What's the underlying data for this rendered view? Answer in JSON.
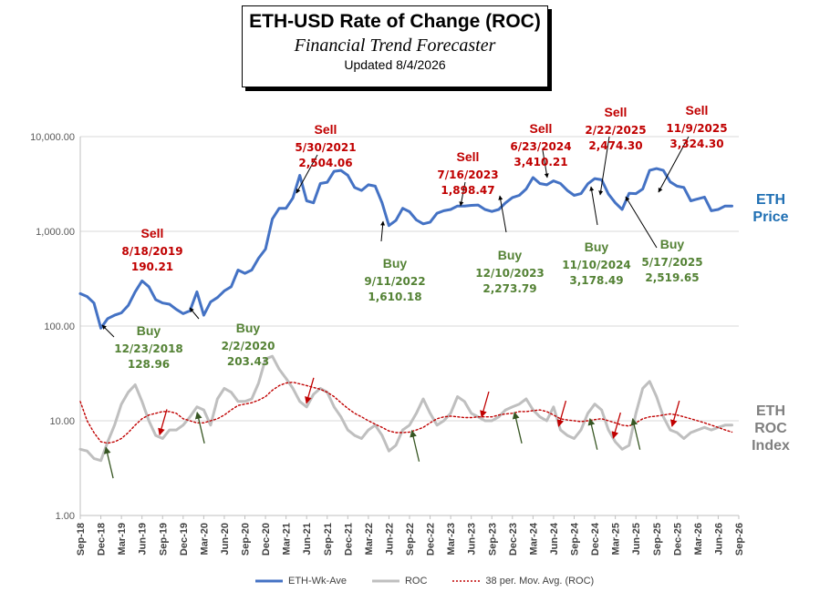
{
  "title": {
    "main": "ETH-USD  Rate of Change (ROC)",
    "sub": "Financial Trend Forecaster",
    "updated": "Updated 8/4/2026"
  },
  "right_labels": {
    "price": [
      "ETH",
      "Price"
    ],
    "roc": [
      "ETH",
      "ROC",
      "Index"
    ]
  },
  "colors": {
    "price": "#4472c4",
    "roc": "#bfbfbf",
    "ma": "#c00000",
    "sell": "#c00000",
    "buy": "#548235",
    "arrow": "#c00000",
    "buy_arrow": "#375623",
    "label_blue": "#1f6fb3",
    "label_gray": "#7f7f7f"
  },
  "chart_data": {
    "type": "line",
    "y_scale": "log",
    "ylim": [
      1,
      10000
    ],
    "y_ticks": [
      "1.00",
      "10.00",
      "100.00",
      "1,000.00",
      "10,000.00"
    ],
    "x_start": "Sep-18",
    "x_end": "Sep-26",
    "x_ticks": [
      "Sep-18",
      "Dec-18",
      "Mar-19",
      "Jun-19",
      "Sep-19",
      "Dec-19",
      "Mar-20",
      "Jun-20",
      "Sep-20",
      "Dec-20",
      "Mar-21",
      "Jun-21",
      "Sep-21",
      "Dec-21",
      "Mar-22",
      "Jun-22",
      "Sep-22",
      "Dec-22",
      "Mar-23",
      "Jun-23",
      "Sep-23",
      "Dec-23",
      "Mar-24",
      "Jun-24",
      "Sep-24",
      "Dec-24",
      "Mar-25",
      "Jun-25",
      "Sep-25",
      "Dec-25",
      "Mar-26",
      "Jun-26",
      "Sep-26"
    ],
    "legend": [
      "ETH-Wk-Ave",
      "ROC",
      "38 per. Mov. Avg. (ROC)"
    ],
    "series": [
      {
        "name": "ETH-Wk-Ave",
        "x": [
          "Sep-18",
          "Oct-18",
          "Nov-18",
          "Dec-18",
          "Jan-19",
          "Feb-19",
          "Mar-19",
          "Apr-19",
          "May-19",
          "Jun-19",
          "Jul-19",
          "Aug-19",
          "Sep-19",
          "Oct-19",
          "Nov-19",
          "Dec-19",
          "Jan-20",
          "Feb-20",
          "Mar-20",
          "Apr-20",
          "May-20",
          "Jun-20",
          "Jul-20",
          "Aug-20",
          "Sep-20",
          "Oct-20",
          "Nov-20",
          "Dec-20",
          "Jan-21",
          "Feb-21",
          "Mar-21",
          "Apr-21",
          "May-21",
          "Jun-21",
          "Jul-21",
          "Aug-21",
          "Sep-21",
          "Oct-21",
          "Nov-21",
          "Dec-21",
          "Jan-22",
          "Feb-22",
          "Mar-22",
          "Apr-22",
          "May-22",
          "Jun-22",
          "Jul-22",
          "Aug-22",
          "Sep-22",
          "Oct-22",
          "Nov-22",
          "Dec-22",
          "Jan-23",
          "Feb-23",
          "Mar-23",
          "Apr-23",
          "May-23",
          "Jun-23",
          "Jul-23",
          "Aug-23",
          "Sep-23",
          "Oct-23",
          "Nov-23",
          "Dec-23",
          "Jan-24",
          "Feb-24",
          "Mar-24",
          "Apr-24",
          "May-24",
          "Jun-24",
          "Jul-24",
          "Aug-24",
          "Sep-24",
          "Oct-24",
          "Nov-24",
          "Dec-24",
          "Jan-25",
          "Feb-25",
          "Mar-25",
          "Apr-25",
          "May-25",
          "Jun-25",
          "Jul-25",
          "Aug-25",
          "Sep-25",
          "Oct-25",
          "Nov-25",
          "Dec-25",
          "Jan-26",
          "Feb-26",
          "Mar-26",
          "Apr-26",
          "May-26",
          "Jun-26",
          "Jul-26",
          "Aug-26"
        ],
        "values": [
          220,
          205,
          175,
          95,
          120,
          130,
          138,
          165,
          230,
          300,
          260,
          190,
          175,
          170,
          150,
          135,
          145,
          230,
          130,
          180,
          200,
          235,
          260,
          390,
          360,
          390,
          520,
          650,
          1350,
          1750,
          1750,
          2250,
          3900,
          2100,
          2000,
          3200,
          3300,
          4300,
          4400,
          3900,
          2900,
          2700,
          3100,
          3000,
          2000,
          1150,
          1300,
          1750,
          1610,
          1320,
          1200,
          1250,
          1550,
          1650,
          1700,
          1850,
          1850,
          1880,
          1898,
          1700,
          1620,
          1700,
          2000,
          2274,
          2400,
          2800,
          3700,
          3200,
          3100,
          3410,
          3200,
          2700,
          2400,
          2500,
          3179,
          3600,
          3500,
          2474,
          2000,
          1700,
          2519,
          2500,
          2800,
          4400,
          4600,
          4400,
          3324,
          3000,
          2900,
          2100,
          2200,
          2300,
          1650,
          1700,
          1850,
          1850
        ]
      },
      {
        "name": "ROC",
        "x": [
          "Sep-18",
          "Oct-18",
          "Nov-18",
          "Dec-18",
          "Jan-19",
          "Feb-19",
          "Mar-19",
          "Apr-19",
          "May-19",
          "Jun-19",
          "Jul-19",
          "Aug-19",
          "Sep-19",
          "Oct-19",
          "Nov-19",
          "Dec-19",
          "Jan-20",
          "Feb-20",
          "Mar-20",
          "Apr-20",
          "May-20",
          "Jun-20",
          "Jul-20",
          "Aug-20",
          "Sep-20",
          "Oct-20",
          "Nov-20",
          "Dec-20",
          "Jan-21",
          "Feb-21",
          "Mar-21",
          "Apr-21",
          "May-21",
          "Jun-21",
          "Jul-21",
          "Aug-21",
          "Sep-21",
          "Oct-21",
          "Nov-21",
          "Dec-21",
          "Jan-22",
          "Feb-22",
          "Mar-22",
          "Apr-22",
          "May-22",
          "Jun-22",
          "Jul-22",
          "Aug-22",
          "Sep-22",
          "Oct-22",
          "Nov-22",
          "Dec-22",
          "Jan-23",
          "Feb-23",
          "Mar-23",
          "Apr-23",
          "May-23",
          "Jun-23",
          "Jul-23",
          "Aug-23",
          "Sep-23",
          "Oct-23",
          "Nov-23",
          "Dec-23",
          "Jan-24",
          "Feb-24",
          "Mar-24",
          "Apr-24",
          "May-24",
          "Jun-24",
          "Jul-24",
          "Aug-24",
          "Sep-24",
          "Oct-24",
          "Nov-24",
          "Dec-24",
          "Jan-25",
          "Feb-25",
          "Mar-25",
          "Apr-25",
          "May-25",
          "Jun-25",
          "Jul-25",
          "Aug-25",
          "Sep-25",
          "Oct-25",
          "Nov-25",
          "Dec-25",
          "Jan-26",
          "Feb-26",
          "Mar-26",
          "Apr-26",
          "May-26",
          "Jun-26",
          "Jul-26",
          "Aug-26"
        ],
        "values": [
          5,
          4.8,
          4,
          3.8,
          6,
          9,
          15,
          20,
          24,
          16,
          10,
          7,
          6.5,
          8,
          8,
          9,
          11,
          14,
          13,
          9,
          17,
          22,
          20,
          16,
          16,
          17,
          25,
          45,
          48,
          35,
          28,
          22,
          16,
          14,
          19,
          22,
          20,
          14,
          11,
          8,
          7,
          6.5,
          8,
          9,
          7,
          4.8,
          5.5,
          8,
          9,
          12,
          17,
          12,
          9,
          10,
          12,
          18,
          16,
          12,
          11,
          10,
          10,
          11,
          13,
          14,
          15,
          17,
          13,
          11,
          10,
          14,
          8,
          7,
          6.5,
          8,
          12,
          15,
          13,
          8,
          6,
          5,
          5.5,
          12,
          22,
          26,
          18,
          11,
          8,
          7.5,
          6.5,
          7.5,
          8,
          8.5,
          8,
          8.5,
          9,
          9
        ]
      },
      {
        "name": "38 per. Mov. Avg. (ROC)",
        "x": [
          "Sep-18",
          "Oct-18",
          "Nov-18",
          "Dec-18",
          "Jan-19",
          "Feb-19",
          "Mar-19",
          "Apr-19",
          "May-19",
          "Jun-19",
          "Jul-19",
          "Aug-19",
          "Sep-19",
          "Oct-19",
          "Nov-19",
          "Dec-19",
          "Jan-20",
          "Feb-20",
          "Mar-20",
          "Apr-20",
          "May-20",
          "Jun-20",
          "Jul-20",
          "Aug-20",
          "Sep-20",
          "Oct-20",
          "Nov-20",
          "Dec-20",
          "Jan-21",
          "Feb-21",
          "Mar-21",
          "Apr-21",
          "May-21",
          "Jun-21",
          "Jul-21",
          "Aug-21",
          "Sep-21",
          "Oct-21",
          "Nov-21",
          "Dec-21",
          "Jan-22",
          "Feb-22",
          "Mar-22",
          "Apr-22",
          "May-22",
          "Jun-22",
          "Jul-22",
          "Aug-22",
          "Sep-22",
          "Oct-22",
          "Nov-22",
          "Dec-22",
          "Jan-23",
          "Feb-23",
          "Mar-23",
          "Apr-23",
          "May-23",
          "Jun-23",
          "Jul-23",
          "Aug-23",
          "Sep-23",
          "Oct-23",
          "Nov-23",
          "Dec-23",
          "Jan-24",
          "Feb-24",
          "Mar-24",
          "Apr-24",
          "May-24",
          "Jun-24",
          "Jul-24",
          "Aug-24",
          "Sep-24",
          "Oct-24",
          "Nov-24",
          "Dec-24",
          "Jan-25",
          "Feb-25",
          "Mar-25",
          "Apr-25",
          "May-25",
          "Jun-25",
          "Jul-25",
          "Aug-25",
          "Sep-25",
          "Oct-25",
          "Nov-25",
          "Dec-25",
          "Jan-26",
          "Feb-26",
          "Mar-26",
          "Apr-26",
          "May-26",
          "Jun-26",
          "Jul-26",
          "Aug-26"
        ],
        "values": [
          16,
          10,
          7.5,
          6,
          5.8,
          6,
          6.5,
          7.5,
          9,
          10.5,
          11.5,
          12,
          12.5,
          12.5,
          12,
          10.5,
          10,
          9.5,
          9.5,
          10,
          10.5,
          11.5,
          13,
          14.5,
          15,
          15.5,
          16.5,
          18,
          21,
          23.5,
          25,
          25.5,
          24.5,
          23.5,
          22.5,
          21.5,
          20,
          18,
          15.5,
          13.5,
          12,
          11,
          10,
          9.2,
          8.5,
          7.8,
          7.5,
          7.5,
          7.6,
          8,
          8.5,
          9.5,
          10.5,
          11,
          11.2,
          11,
          10.8,
          10.8,
          11,
          11,
          11,
          11.5,
          11.8,
          12,
          12.5,
          12.5,
          12.8,
          13,
          12.5,
          11.5,
          10.5,
          10.2,
          10,
          9.8,
          10,
          10.3,
          10.5,
          10,
          9.5,
          9,
          8.8,
          9.5,
          10.5,
          11,
          11.2,
          11.5,
          11.8,
          11.5,
          11,
          10.5,
          10,
          9.5,
          9,
          8.5,
          8,
          7.6
        ]
      }
    ],
    "annotations": [
      {
        "type": "sell",
        "date": "8/18/2019",
        "value": "190.21",
        "label": "Sell"
      },
      {
        "type": "buy",
        "date": "12/23/2018",
        "value": "128.96",
        "label": "Buy"
      },
      {
        "type": "buy",
        "date": "2/2/2020",
        "value": "203.43",
        "label": "Buy"
      },
      {
        "type": "sell",
        "date": "5/30/2021",
        "value": "2,504.06",
        "label": "Sell"
      },
      {
        "type": "buy",
        "date": "9/11/2022",
        "value": "1,610.18",
        "label": "Buy"
      },
      {
        "type": "sell",
        "date": "7/16/2023",
        "value": "1,898.47",
        "label": "Sell"
      },
      {
        "type": "buy",
        "date": "12/10/2023",
        "value": "2,273.79",
        "label": "Buy"
      },
      {
        "type": "sell",
        "date": "6/23/2024",
        "value": "3,410.21",
        "label": "Sell"
      },
      {
        "type": "buy",
        "date": "11/10/2024",
        "value": "3,178.49",
        "label": "Buy"
      },
      {
        "type": "sell",
        "date": "2/22/2025",
        "value": "2,474.30",
        "label": "Sell"
      },
      {
        "type": "buy",
        "date": "5/17/2025",
        "value": "2,519.65",
        "label": "Buy"
      },
      {
        "type": "sell",
        "date": "11/9/2025",
        "value": "3,324.30",
        "label": "Sell"
      }
    ]
  }
}
